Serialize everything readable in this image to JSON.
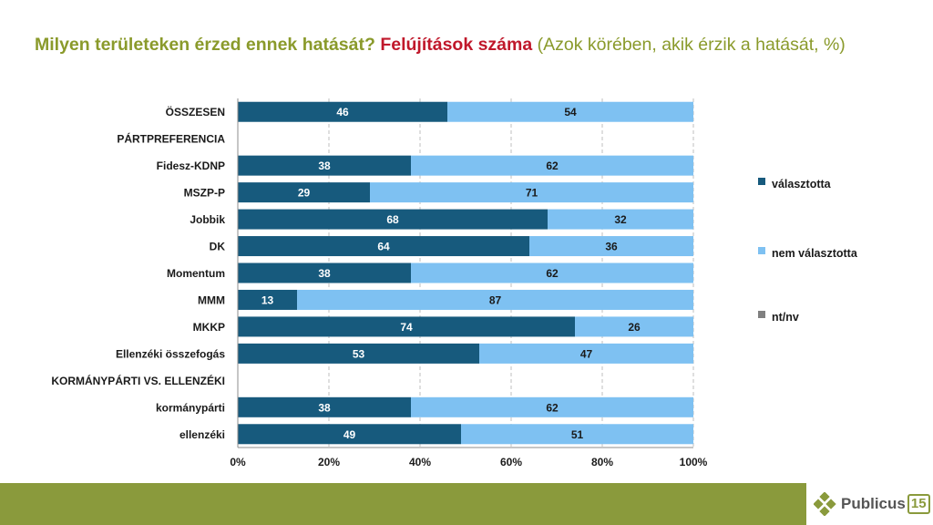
{
  "title": {
    "part1": "Milyen területeken érzed ennek hatását?",
    "part2": "Felújítások száma",
    "part3": "(Azok körében, akik érzik a hatását, %)"
  },
  "colors": {
    "valasztotta": "#175a7d",
    "nem": "#7ec1f2",
    "ntnv": "#808080",
    "title_green": "#8a9a2b",
    "title_red": "#c0182b",
    "footer": "#8a9a3c"
  },
  "legend": {
    "items": [
      {
        "label": "választotta"
      },
      {
        "label": "nem választotta"
      },
      {
        "label": "nt/nv"
      }
    ]
  },
  "logo": {
    "text": "Publicus",
    "num": "15"
  },
  "chart_data": {
    "type": "bar",
    "orientation": "horizontal",
    "stacked": "100%",
    "categories": [
      "ÖSSZESEN",
      "PÁRTPREFERENCIA",
      "Fidesz-KDNP",
      "MSZP-P",
      "Jobbik",
      "DK",
      "Momentum",
      "MMM",
      "MKKP",
      "Ellenzéki összefogás",
      "KORMÁNYPÁRTI VS. ELLENZÉKI",
      "kormánypárti",
      "ellenzéki"
    ],
    "series": [
      {
        "name": "választotta",
        "values": [
          46,
          null,
          38,
          29,
          68,
          64,
          38,
          13,
          74,
          53,
          null,
          38,
          49
        ]
      },
      {
        "name": "nem választotta",
        "values": [
          54,
          null,
          62,
          71,
          32,
          36,
          62,
          87,
          26,
          47,
          null,
          62,
          51
        ]
      },
      {
        "name": "nt/nv",
        "values": [
          0,
          null,
          0,
          0,
          0,
          0,
          0,
          0,
          0,
          0,
          null,
          0,
          0
        ]
      }
    ],
    "xlim": [
      0,
      100
    ],
    "xticks": [
      "0%",
      "20%",
      "40%",
      "60%",
      "80%",
      "100%"
    ],
    "grid": "dashed vertical",
    "legend_position": "right"
  }
}
